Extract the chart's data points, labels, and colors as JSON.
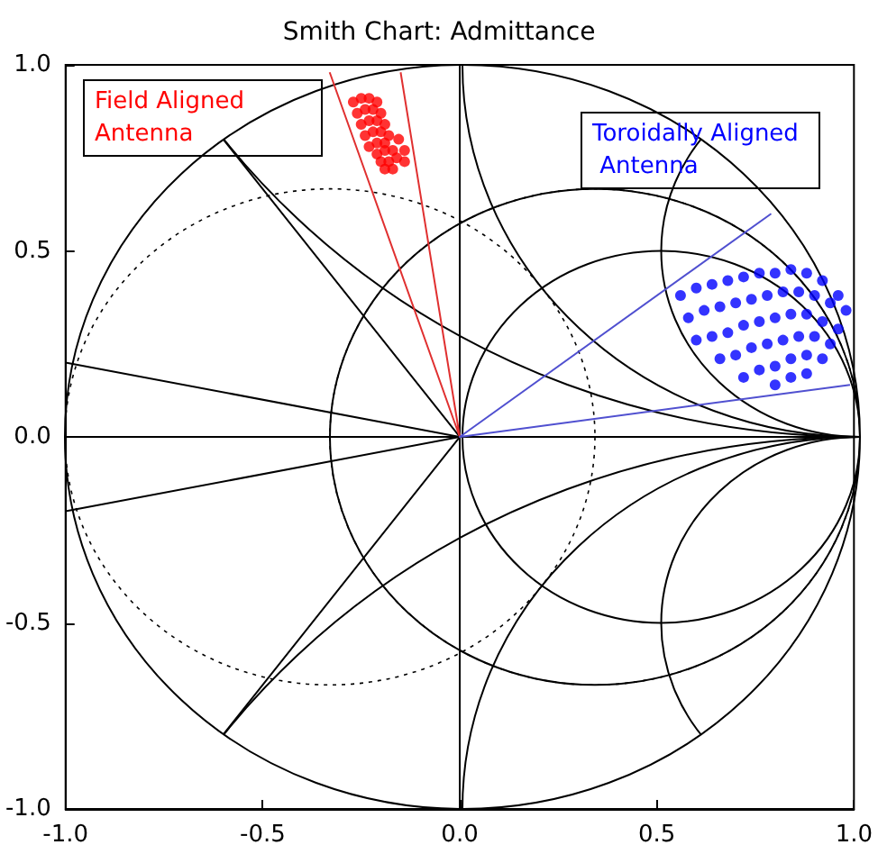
{
  "chart_data": {
    "type": "scatter",
    "title": "Smith Chart: Admittance",
    "xlim": [
      -1,
      1
    ],
    "ylim": [
      -1,
      1
    ],
    "xticks": [
      {
        "value": -1,
        "label": "-1.0"
      },
      {
        "value": -0.5,
        "label": "-0.5"
      },
      {
        "value": 0,
        "label": "0.0"
      },
      {
        "value": 0.5,
        "label": "0.5"
      },
      {
        "value": 1,
        "label": "1.0"
      }
    ],
    "yticks": [
      {
        "value": -1,
        "label": "-1.0"
      },
      {
        "value": -0.5,
        "label": "-0.5"
      },
      {
        "value": 0,
        "label": "0.0"
      },
      {
        "value": 0.5,
        "label": "0.5"
      },
      {
        "value": 1,
        "label": "1.0"
      }
    ],
    "grid": false,
    "marker": "circle",
    "legend": false,
    "series": [
      {
        "name": "Field Aligned Antenna",
        "color": "#ff0000",
        "x": [
          -0.27,
          -0.25,
          -0.23,
          -0.21,
          -0.26,
          -0.24,
          -0.22,
          -0.2,
          -0.25,
          -0.23,
          -0.21,
          -0.19,
          -0.24,
          -0.22,
          -0.2,
          -0.18,
          -0.23,
          -0.21,
          -0.19,
          -0.155,
          -0.21,
          -0.19,
          -0.17,
          -0.14,
          -0.2,
          -0.18,
          -0.16,
          -0.14,
          -0.19,
          -0.17
        ],
        "values": [
          0.9,
          0.91,
          0.91,
          0.9,
          0.87,
          0.88,
          0.88,
          0.87,
          0.84,
          0.85,
          0.85,
          0.84,
          0.81,
          0.82,
          0.82,
          0.81,
          0.78,
          0.79,
          0.79,
          0.8,
          0.76,
          0.77,
          0.77,
          0.77,
          0.74,
          0.74,
          0.75,
          0.74,
          0.72,
          0.72
        ]
      },
      {
        "name": "Toroidally Aligned Antenna",
        "color": "#0000ff",
        "x": [
          0.56,
          0.6,
          0.64,
          0.68,
          0.72,
          0.76,
          0.8,
          0.84,
          0.88,
          0.92,
          0.96,
          0.58,
          0.62,
          0.66,
          0.7,
          0.74,
          0.78,
          0.82,
          0.86,
          0.9,
          0.94,
          0.98,
          0.6,
          0.64,
          0.68,
          0.72,
          0.76,
          0.8,
          0.84,
          0.88,
          0.92,
          0.96,
          0.66,
          0.7,
          0.74,
          0.78,
          0.82,
          0.86,
          0.9,
          0.94,
          0.72,
          0.76,
          0.8,
          0.84,
          0.88,
          0.92,
          0.8,
          0.84,
          0.88
        ],
        "values": [
          0.38,
          0.4,
          0.41,
          0.42,
          0.43,
          0.44,
          0.44,
          0.45,
          0.44,
          0.42,
          0.38,
          0.32,
          0.34,
          0.35,
          0.36,
          0.37,
          0.38,
          0.39,
          0.39,
          0.38,
          0.36,
          0.34,
          0.26,
          0.27,
          0.28,
          0.3,
          0.31,
          0.32,
          0.33,
          0.33,
          0.31,
          0.29,
          0.21,
          0.22,
          0.24,
          0.25,
          0.26,
          0.27,
          0.27,
          0.25,
          0.16,
          0.18,
          0.19,
          0.21,
          0.22,
          0.21,
          0.14,
          0.16,
          0.17
        ]
      },
      {
        "type": "line",
        "marker": "none",
        "color": "#000000",
        "x": [
          -1,
          1
        ],
        "values": [
          0,
          0
        ]
      },
      {
        "type": "line",
        "marker": "none",
        "color": "#000000",
        "x": [
          0,
          0
        ],
        "values": [
          -1,
          1
        ]
      },
      {
        "type": "line",
        "marker": "none",
        "color": "#000000",
        "x": [
          -1,
          0,
          -1
        ],
        "values": [
          0.2,
          0,
          -0.2
        ]
      },
      {
        "type": "line",
        "marker": "none",
        "color": "#000000",
        "x": [
          -0.6,
          0,
          -0.6
        ],
        "values": [
          0.8,
          0,
          -0.8
        ]
      },
      {
        "type": "line",
        "marker": "none",
        "color": "#e03030",
        "x": [
          -0.33,
          0,
          -0.15
        ],
        "values": [
          0.98,
          0,
          0.98
        ]
      },
      {
        "type": "line",
        "marker": "none",
        "color": "#5050d0",
        "x": [
          0.79,
          0,
          0.99
        ],
        "values": [
          0.6,
          0,
          0.14
        ]
      }
    ]
  }
}
